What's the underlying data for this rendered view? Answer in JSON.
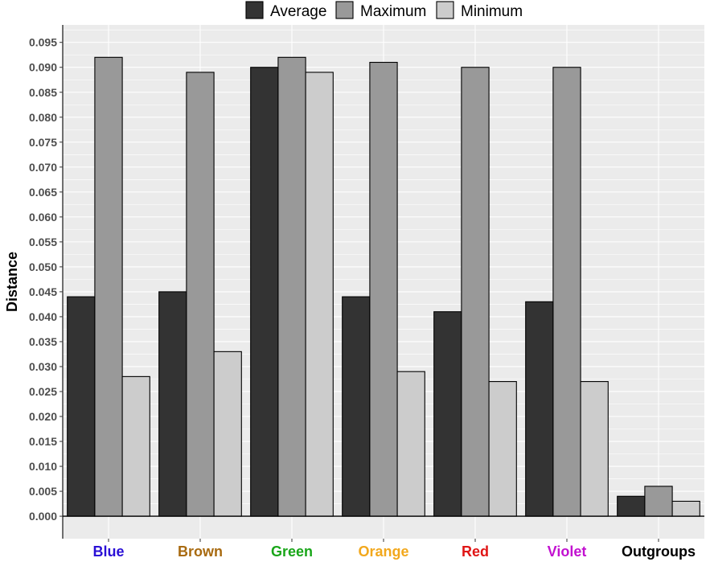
{
  "chart_data": {
    "type": "bar",
    "ylabel": "Distance",
    "xlabel": "",
    "ylim": [
      -0.0045,
      0.0985
    ],
    "y_ticks": [
      "0.000",
      "0.005",
      "0.010",
      "0.015",
      "0.020",
      "0.025",
      "0.030",
      "0.035",
      "0.040",
      "0.045",
      "0.050",
      "0.055",
      "0.060",
      "0.065",
      "0.070",
      "0.075",
      "0.080",
      "0.085",
      "0.090",
      "0.095"
    ],
    "categories": [
      "Blue",
      "Brown",
      "Green",
      "Orange",
      "Red",
      "Violet",
      "Outgroups"
    ],
    "category_colors": [
      "#2a0fd6",
      "#a86a10",
      "#19a619",
      "#f2a81d",
      "#e01515",
      "#c211d0",
      "#000000"
    ],
    "series": [
      {
        "name": "Average",
        "color": "#333333",
        "values": [
          0.044,
          0.045,
          0.09,
          0.044,
          0.041,
          0.043,
          0.004
        ]
      },
      {
        "name": "Maximum",
        "color": "#999999",
        "values": [
          0.092,
          0.089,
          0.092,
          0.091,
          0.09,
          0.09,
          0.006
        ]
      },
      {
        "name": "Minimum",
        "color": "#cccccc",
        "values": [
          0.028,
          0.033,
          0.089,
          0.029,
          0.027,
          0.027,
          0.003
        ]
      }
    ],
    "legend_position": "top",
    "grid": true,
    "panel_background": "#ebebeb"
  }
}
